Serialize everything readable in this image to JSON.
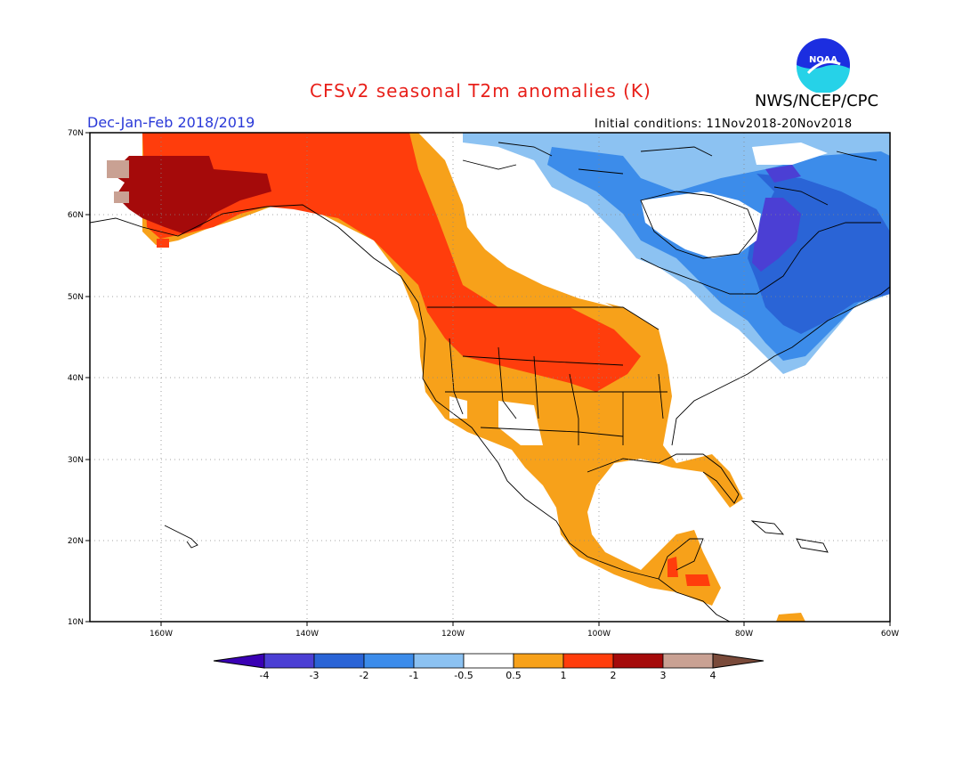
{
  "title": "CFSv2 seasonal T2m anomalies (K)",
  "agency": "NWS/NCEP/CPC",
  "logo_text": "NOAA",
  "period": "Dec-Jan-Feb 2018/2019",
  "initial_conditions": "Initial conditions: 11Nov2018-20Nov2018",
  "lat_labels": [
    "70N",
    "60N",
    "50N",
    "40N",
    "30N",
    "20N",
    "10N"
  ],
  "lon_labels": [
    "160W",
    "140W",
    "120W",
    "100W",
    "80W",
    "60W"
  ],
  "colorbar": {
    "labels": [
      "-4",
      "-3",
      "-2",
      "-1",
      "-0.5",
      "0.5",
      "1",
      "2",
      "3",
      "4"
    ],
    "colors": [
      "#3a00b4",
      "#4b3fd4",
      "#2a64d6",
      "#3c8cea",
      "#8cc2f2",
      "#ffffff",
      "#f7a11a",
      "#ff3d0c",
      "#a50a0a",
      "#c9a193",
      "#7a4a3a"
    ]
  },
  "anomaly_colors": {
    "very_cold": "#4b3fd4",
    "cold": "#2a64d6",
    "cool": "#3c8cea",
    "slight_cool": "#8cc2f2",
    "slight_warm": "#f7a11a",
    "warm": "#ff3d0c",
    "hot": "#a50a0a",
    "very_hot": "#c9a193"
  }
}
